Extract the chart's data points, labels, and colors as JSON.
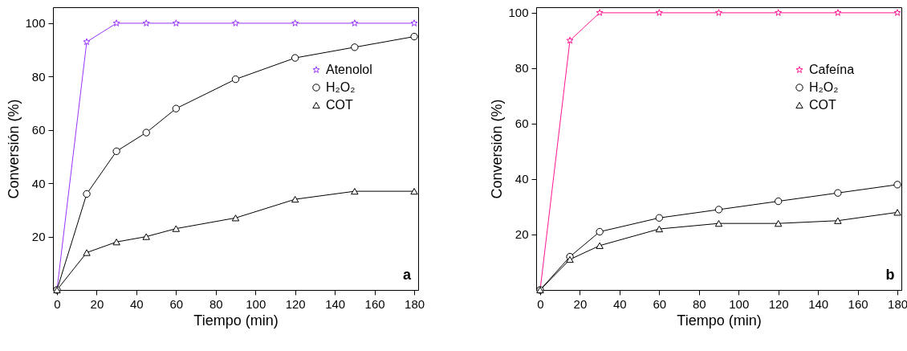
{
  "chart_data": [
    {
      "type": "line",
      "xlabel": "Tiempo (min)",
      "ylabel": "Conversión (%)",
      "x": [
        0,
        15,
        30,
        45,
        60,
        90,
        120,
        150,
        180
      ],
      "xlim": [
        -2,
        182
      ],
      "xticks": [
        0,
        20,
        40,
        60,
        80,
        100,
        120,
        140,
        160,
        180
      ],
      "ylim": [
        0,
        106
      ],
      "yticks": [
        20,
        40,
        60,
        80,
        100
      ],
      "grid": false,
      "legend": "top right",
      "annotations": [
        "a"
      ],
      "series": [
        {
          "name": "Atenolol",
          "color": "#9933ff",
          "marker": "star",
          "values": [
            0,
            93,
            100,
            100,
            100,
            100,
            100,
            100,
            100
          ]
        },
        {
          "name": "H₂O₂",
          "color": "#000000",
          "marker": "circle",
          "values": [
            0,
            36,
            52,
            59,
            68,
            79,
            87,
            91,
            95
          ]
        },
        {
          "name": "COT",
          "color": "#000000",
          "marker": "triangle",
          "values": [
            0,
            14,
            18,
            20,
            23,
            27,
            34,
            37,
            37
          ]
        }
      ]
    },
    {
      "type": "line",
      "xlabel": "Tiempo (min)",
      "ylabel": "Conversión (%)",
      "x": [
        0,
        15,
        30,
        60,
        90,
        120,
        150,
        180
      ],
      "xlim": [
        -2,
        182
      ],
      "xticks": [
        0,
        20,
        40,
        60,
        80,
        100,
        120,
        140,
        160,
        180
      ],
      "ylim": [
        0,
        102
      ],
      "yticks": [
        20,
        40,
        60,
        80,
        100
      ],
      "grid": false,
      "legend": "top right",
      "annotations": [
        "b"
      ],
      "series": [
        {
          "name": "Cafeína",
          "color": "#ff1493",
          "marker": "star",
          "values": [
            0,
            90,
            100,
            100,
            100,
            100,
            100,
            100
          ]
        },
        {
          "name": "H₂O₂",
          "color": "#000000",
          "marker": "circle",
          "values": [
            0,
            12,
            21,
            26,
            29,
            32,
            35,
            38
          ]
        },
        {
          "name": "COT",
          "color": "#000000",
          "marker": "triangle",
          "values": [
            0,
            11,
            16,
            22,
            24,
            24,
            25,
            28
          ]
        }
      ]
    }
  ]
}
